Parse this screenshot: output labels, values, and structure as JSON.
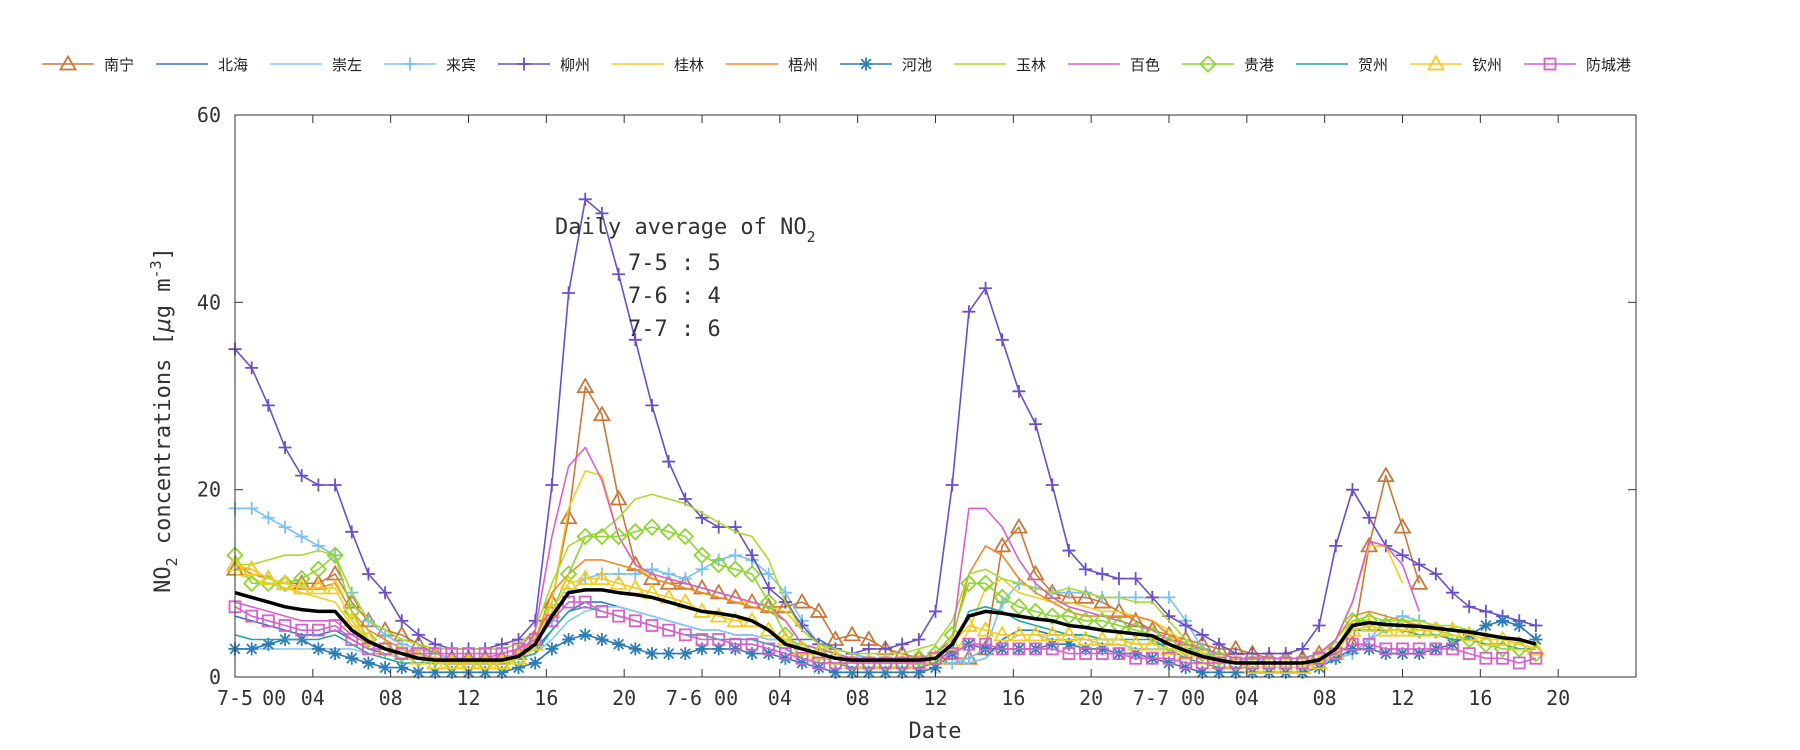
{
  "chart_data": {
    "type": "line",
    "xlabel": "Date",
    "ylabel": "NO2 concentrations [μg m-3]",
    "ylabel_parts": {
      "a": "NO",
      "b": "2",
      "c": " concentrations [",
      "d": "μ",
      "e": "g m",
      "f": "-3",
      "g": "]"
    },
    "ylim": [
      0,
      60
    ],
    "y_ticks": [
      "0",
      "20",
      "40",
      "60"
    ],
    "x_range": [
      0,
      72
    ],
    "x_ticks": [
      {
        "x": 0,
        "label": "7-5"
      },
      {
        "x": 4,
        "label": "04"
      },
      {
        "x": 8,
        "label": "08"
      },
      {
        "x": 12,
        "label": "12"
      },
      {
        "x": 16,
        "label": "16"
      },
      {
        "x": 20,
        "label": "20"
      },
      {
        "x": 24,
        "label": "7-6 00"
      },
      {
        "x": 28,
        "label": "04"
      },
      {
        "x": 32,
        "label": "08"
      },
      {
        "x": 36,
        "label": "12"
      },
      {
        "x": 40,
        "label": "16"
      },
      {
        "x": 44,
        "label": "20"
      },
      {
        "x": 48,
        "label": "7-7 00"
      },
      {
        "x": 52,
        "label": "04"
      },
      {
        "x": 56,
        "label": "08"
      },
      {
        "x": 60,
        "label": "12"
      },
      {
        "x": 64,
        "label": "16"
      },
      {
        "x": 68,
        "label": "20"
      }
    ],
    "extra_tick_labels": [
      {
        "x": 1.5,
        "label": "00"
      }
    ],
    "annotation": {
      "title_a": "Daily average of NO",
      "title_sub": "2",
      "lines": [
        "7-5 : 5",
        "7-6 : 4",
        "7-7 : 6"
      ]
    },
    "legend_placement": "top",
    "series": [
      {
        "name": "南宁",
        "color": "#c8783a",
        "marker": "triangle",
        "values": [
          11.5,
          11.5,
          10.5,
          10,
          10,
          10,
          11,
          8,
          6,
          5,
          4.5,
          3.5,
          2.5,
          2,
          2,
          2,
          2,
          2.5,
          4,
          8,
          17,
          31,
          28,
          19,
          12,
          10.5,
          10,
          10,
          9.5,
          9,
          8.5,
          8,
          7.5,
          7.5,
          8,
          7,
          4,
          4.5,
          4,
          3,
          2.5,
          2,
          2,
          2,
          2,
          3,
          14,
          16,
          11,
          9,
          8.5,
          8.5,
          8,
          7,
          6,
          5,
          4.5,
          4,
          3.5,
          3,
          3,
          2.5,
          2,
          2,
          2,
          2.5,
          2.5,
          3.5,
          14,
          21.5,
          16,
          10
        ]
      },
      {
        "name": "北海",
        "color": "#2e7cb8",
        "marker": "none",
        "values": [
          6.5,
          6,
          5.5,
          5,
          4.5,
          4.5,
          5,
          4,
          3,
          2.5,
          2,
          2,
          2,
          2,
          2,
          2,
          2,
          2.5,
          3,
          5,
          7,
          8,
          8,
          7.5,
          7,
          6.5,
          6,
          5.5,
          5,
          5,
          4.5,
          4.5,
          4,
          4,
          4,
          4,
          3,
          2.5,
          2,
          2,
          1.5,
          1.5,
          1.5,
          1.5,
          1.5,
          2,
          4,
          5,
          5,
          4.5,
          4.5,
          4.5,
          4,
          4,
          3.5,
          3.5,
          3.5,
          3,
          3,
          2.5,
          2,
          1.5,
          1.5,
          1.5,
          1.5,
          1.5,
          2,
          2.5,
          4,
          5,
          5,
          4.5
        ]
      },
      {
        "name": "崇左",
        "color": "#8cc8f0",
        "marker": "none",
        "values": [
          3,
          3,
          3,
          3,
          3,
          3,
          3,
          3,
          2.5,
          2.5,
          2,
          2,
          1.5,
          1.5,
          1.5,
          1.5,
          1.5,
          2,
          2.5,
          4,
          6,
          7,
          7.5,
          7.5,
          7,
          6.5,
          6,
          5.5,
          5,
          5,
          4.5,
          4.5,
          4,
          4,
          3.5,
          3,
          3,
          2.5,
          2,
          2,
          1.5,
          1.5,
          1.5,
          1.5,
          1.5,
          2,
          3.5,
          4.5,
          4.5,
          4,
          4,
          4,
          3.5,
          3.5,
          3,
          3,
          3,
          3,
          2.5,
          2.5,
          2,
          1.5,
          1.5,
          1.5,
          1.5,
          1.5,
          2,
          2.5,
          4,
          5,
          5,
          4.5
        ]
      },
      {
        "name": "来宾",
        "color": "#7ac0f0",
        "marker": "plus",
        "values": [
          18,
          18,
          17,
          16,
          15,
          14,
          13,
          9,
          6,
          4.5,
          3.5,
          3,
          2.5,
          2,
          2,
          2,
          2,
          2.5,
          3.5,
          6,
          9,
          10.5,
          11,
          11,
          11,
          11.5,
          11,
          10.5,
          11.5,
          12.5,
          13,
          12.5,
          11,
          9,
          6,
          3.5,
          3,
          2.5,
          2,
          2,
          1.5,
          1.5,
          1.5,
          1.5,
          2,
          3,
          8,
          10,
          9.5,
          9,
          9,
          9,
          8.5,
          8.5,
          8.5,
          8.5,
          8.5,
          6,
          3,
          2.5,
          2,
          2,
          1.5,
          1.5,
          1.5,
          1.5,
          2,
          2.5,
          4,
          6,
          6.5,
          6
        ]
      },
      {
        "name": "柳州",
        "color": "#6a4fc6",
        "marker": "plus",
        "values": [
          35,
          33,
          29,
          24.5,
          21.5,
          20.5,
          20.5,
          15.5,
          11,
          9,
          6,
          4.5,
          3.5,
          3,
          3,
          3,
          3.5,
          4,
          6,
          20.5,
          41,
          51,
          49.5,
          43,
          36,
          29,
          23,
          19,
          17,
          16,
          16,
          13,
          9.5,
          8,
          5.5,
          3.5,
          3,
          2.5,
          3,
          3,
          3.5,
          4,
          7,
          20.5,
          39,
          41.5,
          36,
          30.5,
          27,
          20.5,
          13.5,
          11.5,
          11,
          10.5,
          10.5,
          8.5,
          6.5,
          5.5,
          4.5,
          3.5,
          2.5,
          2.5,
          2.5,
          2.5,
          3,
          5.5,
          14,
          20,
          17,
          14,
          13,
          12,
          11,
          9,
          7.5,
          7,
          6.5,
          6,
          5.5
        ]
      },
      {
        "name": "桂林",
        "color": "#f5cc20",
        "marker": "none",
        "values": [
          11,
          10.5,
          10,
          9.5,
          9,
          8.5,
          8,
          5.5,
          4,
          3,
          2.5,
          2,
          2,
          1.5,
          1.5,
          1.5,
          1.5,
          2,
          3,
          8,
          18,
          22,
          21.5,
          15,
          12,
          10.5,
          10,
          9.5,
          9,
          8.5,
          8,
          8,
          7.5,
          7,
          5,
          3.5,
          2.5,
          2,
          2,
          1.5,
          1.5,
          1.5,
          1.5,
          2,
          5,
          9.5,
          10.5,
          9,
          8.5,
          8,
          8,
          7.5,
          7,
          7,
          6.5,
          6,
          5,
          3.5,
          2.5,
          2,
          1.5,
          1.5,
          1.5,
          1.5,
          1.5,
          2,
          4,
          8,
          14,
          14,
          10
        ]
      },
      {
        "name": "梧州",
        "color": "#f08a24",
        "marker": "none",
        "values": [
          12,
          11,
          10.5,
          10,
          9.5,
          9.5,
          10,
          7,
          5,
          4,
          3,
          2.5,
          2,
          2,
          2,
          2,
          2,
          2.5,
          4,
          9,
          11,
          12.5,
          12.5,
          12,
          11.5,
          10.5,
          10,
          9.5,
          9,
          8.5,
          8,
          7.5,
          7,
          6,
          3.5,
          3,
          2.5,
          2,
          2,
          2,
          2,
          2,
          2.5,
          4,
          11,
          14,
          13,
          10.5,
          9,
          8,
          7,
          6.5,
          6.5,
          6.5,
          6.5,
          6,
          4.5,
          3.5,
          3,
          2.5,
          2,
          2,
          2,
          2,
          2,
          2.5,
          4,
          6.5,
          7,
          6.5,
          6,
          5.5,
          5.5,
          5,
          5,
          4.5,
          4,
          3.5,
          3
        ]
      },
      {
        "name": "河池",
        "color": "#2e7cb8",
        "marker": "asterisk",
        "values": [
          3,
          3,
          3.5,
          4,
          4,
          3,
          2.5,
          2,
          1.5,
          1,
          1,
          0.5,
          0.5,
          0.5,
          0.5,
          0.5,
          0.5,
          1,
          1.5,
          3,
          4,
          4.5,
          4,
          3.5,
          3,
          2.5,
          2.5,
          2.5,
          3,
          3,
          3,
          2.5,
          2.5,
          2,
          1.5,
          1,
          0.5,
          0.5,
          0.5,
          0.5,
          0.5,
          0.5,
          1,
          2.5,
          3.5,
          3,
          3,
          3,
          3,
          3.5,
          3.5,
          3,
          3,
          2.5,
          2.5,
          2,
          1.5,
          1,
          0.5,
          0.5,
          0.5,
          0.5,
          0.5,
          0.5,
          0.5,
          1,
          2,
          3,
          3,
          2.5,
          2.5,
          2.5,
          3,
          3.5,
          4.5,
          5.5,
          6,
          5.5,
          4
        ]
      },
      {
        "name": "玉林",
        "color": "#a8dc2a",
        "marker": "none",
        "values": [
          12,
          12,
          12.5,
          13,
          13,
          13.5,
          13,
          9,
          6,
          5,
          4,
          3.5,
          3,
          3,
          3,
          3,
          3,
          3.5,
          5,
          10,
          14,
          15,
          15.5,
          17,
          19,
          19.5,
          19,
          18.5,
          17.5,
          16.5,
          15.5,
          15,
          12.5,
          8,
          5,
          3.5,
          3,
          2.5,
          2.5,
          2.5,
          2.5,
          3,
          3.5,
          6,
          11,
          11.5,
          10.5,
          10,
          9.5,
          9,
          9.5,
          9,
          8.5,
          8.5,
          8,
          8,
          6,
          4,
          3,
          2.5,
          2,
          2,
          2,
          2,
          2,
          2.5,
          4,
          6,
          6.5,
          6,
          6,
          6,
          5.5,
          5.5,
          5,
          4.5,
          4,
          3.5,
          3
        ]
      },
      {
        "name": "百色",
        "color": "#d860cc",
        "marker": "none",
        "values": [
          8,
          7.5,
          7,
          6.5,
          6,
          6,
          6,
          4.5,
          3.5,
          3,
          2.5,
          2,
          2,
          2,
          2,
          2,
          2.5,
          3,
          5,
          15,
          22.5,
          24.5,
          21,
          15,
          12,
          11,
          10.5,
          10,
          9.5,
          9,
          8.5,
          8,
          7.5,
          6,
          3.5,
          3,
          2.5,
          2,
          2,
          2,
          2,
          2,
          2.5,
          4,
          18,
          18,
          16,
          12.5,
          10,
          8.5,
          7.5,
          7,
          6.5,
          6,
          5.5,
          5,
          4,
          3.5,
          3,
          2.5,
          2,
          2,
          2,
          2,
          2,
          2.5,
          4,
          8,
          14.5,
          14,
          12,
          7
        ]
      },
      {
        "name": "贵港",
        "color": "#8cd630",
        "marker": "diamond",
        "values": [
          13,
          10,
          10,
          10,
          10.5,
          11.5,
          13,
          7,
          4,
          3,
          2.5,
          2,
          2,
          1.5,
          1.5,
          1.5,
          1.5,
          2,
          3.5,
          7,
          11,
          15,
          15,
          15,
          15.5,
          16,
          15.5,
          15,
          13,
          12,
          11.5,
          11,
          8,
          4.5,
          3,
          2.5,
          2,
          1.5,
          1.5,
          1.5,
          1.5,
          2,
          2.5,
          4.5,
          10,
          10,
          8.5,
          7.5,
          7,
          6.5,
          6.5,
          6,
          6,
          5.5,
          5,
          4.5,
          3.5,
          3,
          2.5,
          2,
          1.5,
          1.5,
          1.5,
          1.5,
          1.5,
          2,
          3,
          6,
          6,
          5.5,
          5.5,
          5,
          5,
          4.5,
          4,
          3.5,
          3,
          3,
          2.5
        ]
      },
      {
        "name": "贺州",
        "color": "#20a8a0",
        "marker": "none",
        "values": [
          4.5,
          4,
          4,
          4,
          4,
          4,
          4.5,
          3.5,
          2.5,
          2,
          1.5,
          1.5,
          1.5,
          1.5,
          1.5,
          1.5,
          1.5,
          2,
          2.5,
          5,
          7,
          7.5,
          7,
          6.5,
          6,
          5.5,
          5,
          4.5,
          4.5,
          4,
          4,
          4,
          3.5,
          3,
          2,
          1.5,
          1.5,
          1,
          1,
          1,
          1,
          1,
          1.5,
          3,
          7,
          7.5,
          7,
          6,
          5.5,
          5,
          4.5,
          4.5,
          4,
          4,
          4,
          4,
          3,
          2,
          1.5,
          1,
          1,
          1,
          1,
          1,
          1,
          1.5,
          3,
          5,
          5,
          5,
          5,
          4.5,
          4.5,
          4,
          4,
          3.5,
          3.5,
          3,
          3
        ]
      },
      {
        "name": "钦州",
        "color": "#f5cc20",
        "marker": "triangle",
        "values": [
          12,
          11.5,
          10.5,
          10,
          9.5,
          9.5,
          9.5,
          6,
          4,
          3,
          2.5,
          2,
          1.5,
          1.5,
          1.5,
          1.5,
          1.5,
          2,
          3.5,
          7,
          10,
          10.5,
          10.5,
          10,
          9.5,
          9,
          8.5,
          8,
          7,
          6.5,
          6,
          6,
          5,
          4,
          3,
          2.5,
          2,
          1.5,
          1.5,
          1.5,
          1.5,
          1.5,
          2,
          3.5,
          5.5,
          5,
          4.5,
          4.5,
          4.5,
          4.5,
          4.5,
          4,
          4,
          4,
          3.5,
          3.5,
          3,
          2.5,
          2,
          1.5,
          1.5,
          1,
          1,
          1,
          1,
          1.5,
          2.5,
          5,
          5.5,
          5,
          5,
          5,
          5,
          5,
          4.5,
          4,
          4,
          3.5,
          3
        ]
      },
      {
        "name": "防城港",
        "color": "#d860cc",
        "marker": "square",
        "values": [
          7.5,
          6.5,
          6,
          5.5,
          5,
          5,
          5.5,
          4,
          3,
          3,
          2.5,
          2.5,
          2.5,
          2.5,
          2.5,
          2.5,
          2.5,
          3,
          4,
          6,
          8,
          8,
          7,
          6.5,
          6,
          5.5,
          5,
          4.5,
          4,
          4,
          3.5,
          3.5,
          3,
          2.5,
          2,
          1.5,
          1.5,
          1.5,
          1.5,
          1.5,
          1.5,
          1.5,
          2,
          2.5,
          3.5,
          3.5,
          3,
          3,
          3,
          3,
          2.5,
          2.5,
          2.5,
          2.5,
          2,
          2,
          2,
          1.5,
          1.5,
          1.5,
          1.5,
          1.5,
          1.5,
          1.5,
          1.5,
          2,
          2.5,
          3.5,
          3.5,
          3,
          3,
          3,
          3,
          3,
          2.5,
          2,
          2,
          1.5,
          2
        ]
      },
      {
        "name": "",
        "color": "#000000",
        "marker": "none",
        "bold": true,
        "values": [
          9,
          8.5,
          8,
          7.5,
          7.2,
          7,
          7,
          5,
          3.8,
          3,
          2.5,
          2,
          1.8,
          1.8,
          1.8,
          1.8,
          1.8,
          2.2,
          3.5,
          6.5,
          9,
          9.3,
          9.3,
          9,
          8.8,
          8.5,
          8,
          7.5,
          7,
          6.8,
          6.5,
          6,
          5,
          3.5,
          3,
          2.5,
          2,
          1.8,
          1.8,
          1.8,
          1.8,
          1.8,
          2,
          3.5,
          6.5,
          7,
          6.8,
          6.5,
          6.2,
          6,
          5.5,
          5.3,
          5,
          4.8,
          4.6,
          4.4,
          3.5,
          2.8,
          2.2,
          1.8,
          1.5,
          1.5,
          1.5,
          1.5,
          1.5,
          1.8,
          3,
          5.5,
          5.8,
          5.6,
          5.5,
          5.4,
          5.2,
          5,
          4.8,
          4.5,
          4.2,
          4,
          3.5
        ]
      }
    ]
  }
}
